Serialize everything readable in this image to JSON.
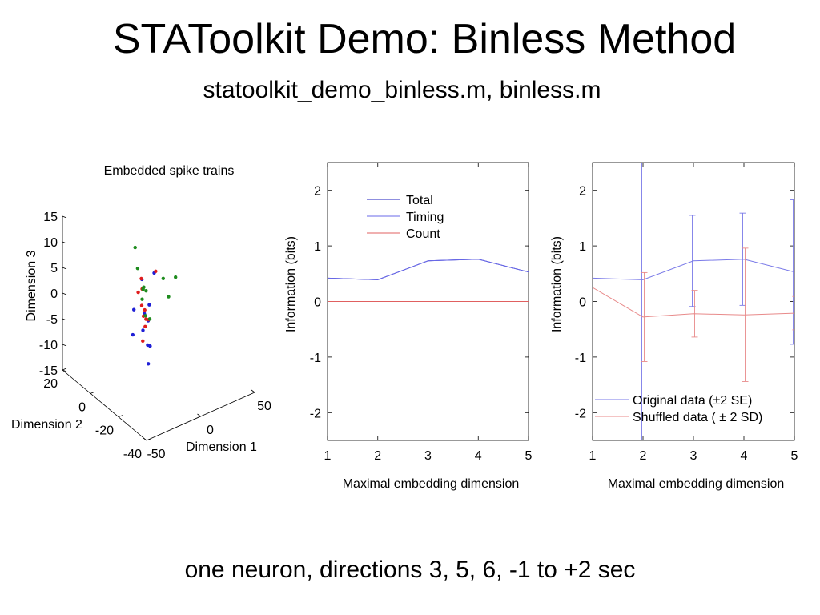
{
  "slide": {
    "title": "STAToolkit Demo: Binless Method",
    "subtitle": "statoolkit_demo_binless.m, binless.m",
    "caption": "one neuron, directions 3, 5, 6, -1 to +2 sec"
  },
  "chart_data": [
    {
      "type": "scatter",
      "projection": "3d",
      "title": "Embedded spike trains",
      "xlabel": "Dimension 1",
      "ylabel": "Dimension 2",
      "zlabel": "Dimension 3",
      "xlim": [
        -50,
        50
      ],
      "ylim": [
        -40,
        20
      ],
      "zlim": [
        -15,
        15
      ],
      "xticks": [
        "-50",
        "0",
        "50"
      ],
      "yticks": [
        "-40",
        "-20",
        "0",
        "20"
      ],
      "zticks": [
        "-15",
        "-10",
        "-5",
        "0",
        "5",
        "10",
        "15"
      ],
      "grid": false,
      "series": [
        {
          "color": "#1f1fd6",
          "points": [
            [
              -30,
              -30,
              13.5
            ],
            [
              -18,
              -12,
              7
            ],
            [
              -28,
              -14,
              2.5
            ],
            [
              -42,
              -24,
              1.2
            ],
            [
              -30,
              -22,
              0.5
            ],
            [
              -36,
              -30,
              0
            ],
            [
              -20,
              -18,
              0.5
            ],
            [
              -26,
              -24,
              -2.5
            ],
            [
              -38,
              -32,
              -3
            ],
            [
              -6,
              -8,
              0
            ],
            [
              -8,
              -6,
              -2
            ]
          ]
        },
        {
          "color": "#e01c1c",
          "points": [
            [
              -26,
              -28,
              13
            ],
            [
              -16,
              -10,
              6.5
            ],
            [
              -24,
              -14,
              5.5
            ],
            [
              -30,
              -26,
              3.5
            ],
            [
              -10,
              -6,
              3
            ],
            [
              -18,
              -14,
              1.5
            ],
            [
              -22,
              -18,
              1
            ],
            [
              -14,
              -10,
              -1
            ],
            [
              -12,
              -8,
              -6.5
            ],
            [
              -2,
              -2,
              -6
            ],
            [
              0,
              2,
              -3
            ]
          ]
        },
        {
          "color": "#1e8c1e",
          "points": [
            [
              12,
              16,
              4
            ],
            [
              4,
              8,
              2.5
            ],
            [
              -4,
              -2,
              1.5
            ],
            [
              -10,
              -6,
              1
            ],
            [
              4,
              2,
              -0.5
            ],
            [
              20,
              16,
              -4.5
            ],
            [
              6,
              4,
              -6
            ],
            [
              10,
              4,
              -7
            ],
            [
              30,
              6,
              -5
            ],
            [
              38,
              16,
              -4.5
            ],
            [
              52,
              18,
              -6
            ]
          ]
        }
      ]
    },
    {
      "type": "line",
      "xlabel": "Maximal embedding dimension",
      "ylabel": "Information (bits)",
      "xlim": [
        1,
        5
      ],
      "ylim": [
        -2.5,
        2.5
      ],
      "xticks": [
        "1",
        "2",
        "3",
        "4",
        "5"
      ],
      "yticks": [
        "-2",
        "-1",
        "0",
        "1",
        "2"
      ],
      "legend_position": "top-center",
      "x": [
        1,
        2,
        3,
        4,
        5
      ],
      "series": [
        {
          "name": "Total",
          "color": "#1f1fbf",
          "values": [
            0.42,
            0.39,
            0.73,
            0.76,
            0.53
          ]
        },
        {
          "name": "Timing",
          "color": "#6a6ae8",
          "values": [
            0.42,
            0.39,
            0.73,
            0.76,
            0.53
          ]
        },
        {
          "name": "Count",
          "color": "#e06060",
          "values": [
            0,
            0,
            0,
            0,
            0
          ]
        }
      ]
    },
    {
      "type": "line",
      "error_bars": true,
      "xlabel": "Maximal embedding dimension",
      "ylabel": "Information (bits)",
      "xlim": [
        1,
        5
      ],
      "ylim": [
        -2.5,
        2.5
      ],
      "xticks": [
        "1",
        "2",
        "3",
        "4",
        "5"
      ],
      "yticks": [
        "-2",
        "-1",
        "0",
        "1",
        "2"
      ],
      "legend_position": "bottom-right",
      "x": [
        1,
        2,
        3,
        4,
        5
      ],
      "series": [
        {
          "name": "Original data (±2 SE)",
          "color": "#7a7ae8",
          "values": [
            0.42,
            0.39,
            0.73,
            0.76,
            0.53
          ],
          "errors": [
            0,
            3.0,
            0.82,
            0.83,
            1.3
          ]
        },
        {
          "name": "Shuffled data ( ± 2 SD)",
          "color": "#e88a8a",
          "values": [
            0.25,
            -0.28,
            -0.22,
            -0.24,
            -0.21
          ],
          "errors": [
            0,
            0.8,
            0.42,
            1.2,
            0.3
          ]
        }
      ]
    }
  ]
}
